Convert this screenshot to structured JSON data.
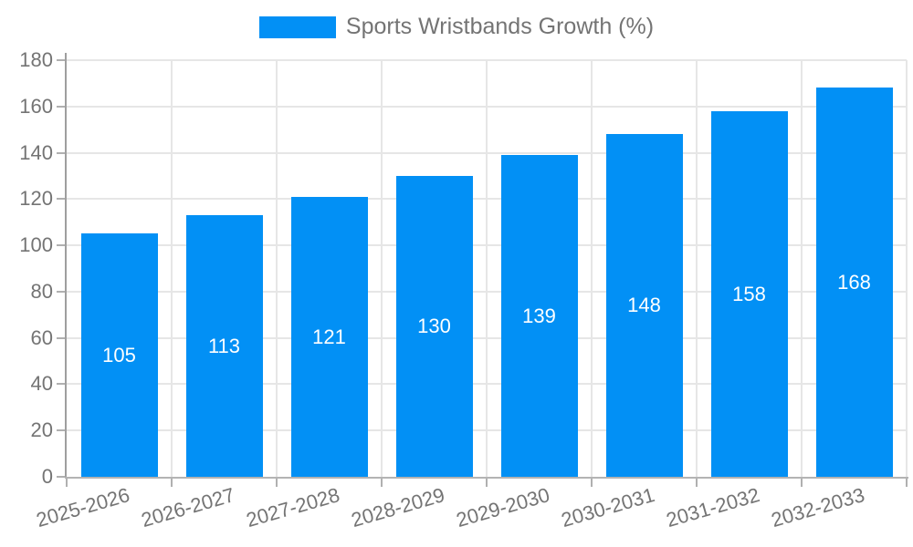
{
  "legend": {
    "label": "Sports Wristbands Growth (%)"
  },
  "colors": {
    "bar": "#0290f5",
    "bar_value_text": "#ffffff",
    "axis_text": "#747474",
    "legend_text": "#747474",
    "grid_line": "#e6e6e6",
    "axis_line_y": "#9f9f9f",
    "axis_line_x": "#b3b3b3",
    "background": "#ffffff"
  },
  "chart_data": {
    "type": "bar",
    "title": "Sports Wristbands Growth (%)",
    "categories": [
      "2025-2026",
      "2026-2027",
      "2027-2028",
      "2028-2029",
      "2029-2030",
      "2030-2031",
      "2031-2032",
      "2032-2033"
    ],
    "values": [
      105,
      113,
      121,
      130,
      139,
      148,
      158,
      168
    ],
    "xlabel": "",
    "ylabel": "",
    "ylim": [
      0,
      180
    ],
    "ytick_step": 20,
    "yticks": [
      0,
      20,
      40,
      60,
      80,
      100,
      120,
      140,
      160,
      180
    ],
    "grid": true,
    "legend_position": "top-center",
    "bar_value_labels": true,
    "bar_value_label_position": "center",
    "x_tick_label_rotation_deg": -16
  }
}
